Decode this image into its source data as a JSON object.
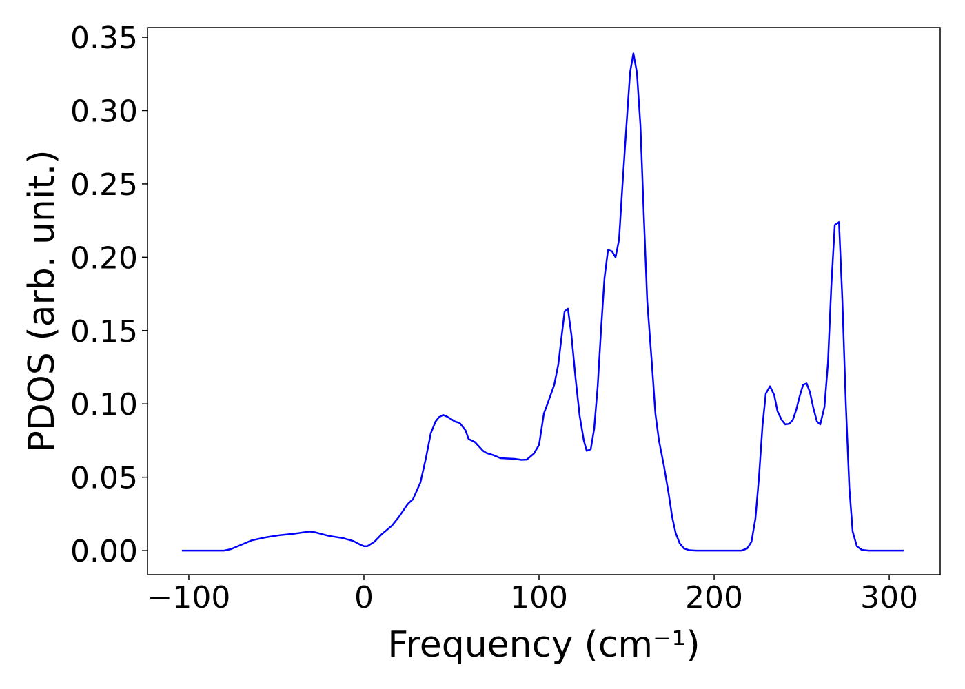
{
  "chart_data": {
    "type": "line",
    "x_label": "Frequency (cm⁻¹)",
    "y_label": "PDOS (arb. unit.)",
    "xlim": [
      -123.6,
      329.1
    ],
    "ylim": [
      -0.0164,
      0.3566
    ],
    "xticks": [
      {
        "value": -100,
        "label": "−100"
      },
      0,
      100,
      200,
      300
    ],
    "yticks": [
      {
        "value": 0,
        "label": "0.00"
      },
      {
        "value": 0.05,
        "label": "0.05"
      },
      {
        "value": 0.1,
        "label": "0.10"
      },
      {
        "value": 0.15,
        "label": "0.15"
      },
      {
        "value": 0.2,
        "label": "0.20"
      },
      {
        "value": 0.25,
        "label": "0.25"
      },
      {
        "value": 0.3,
        "label": "0.30"
      },
      {
        "value": 0.35,
        "label": "0.35"
      }
    ],
    "series": [
      {
        "color": "#0000ff",
        "x": [
          -104,
          -80,
          -76,
          -70,
          -64,
          -56,
          -48,
          -40,
          -31,
          -28,
          -20,
          -12,
          -6,
          -2,
          0,
          2,
          6,
          10,
          16,
          20,
          24,
          25.2,
          28,
          32.3,
          35.4,
          38.2,
          40.9,
          42.9,
          45.3,
          48,
          52,
          54.7,
          58,
          59.8,
          63.4,
          68,
          70,
          74,
          78,
          86,
          90,
          93,
          97,
          100,
          102.8,
          105.1,
          108.7,
          111,
          113,
          114.6,
          116.5,
          118.5,
          120.9,
          123.2,
          125.6,
          127.2,
          129.5,
          131.5,
          133.5,
          135.4,
          137.4,
          139.4,
          141.7,
          143.7,
          145.7,
          147.6,
          150,
          152,
          153.9,
          155.9,
          157.9,
          159.8,
          161.8,
          164.6,
          166.5,
          168.5,
          171.3,
          174,
          176,
          178,
          180.3,
          182.7,
          185.8,
          189.8,
          215.7,
          218.9,
          221.3,
          223.6,
          225.6,
          227.6,
          229.5,
          231.9,
          234.3,
          236.2,
          238.6,
          240.6,
          243,
          244.9,
          246.9,
          248.8,
          250.8,
          252.8,
          254.7,
          256.7,
          258.7,
          260.6,
          263,
          265,
          266.9,
          268.9,
          271.3,
          273.2,
          275.2,
          277.2,
          279.1,
          281.5,
          284.3,
          288.2,
          308.3
        ],
        "values": [
          0,
          0,
          0.001,
          0.004,
          0.007,
          0.009,
          0.0105,
          0.0115,
          0.013,
          0.0125,
          0.01,
          0.0085,
          0.0065,
          0.004,
          0.003,
          0.003,
          0.006,
          0.011,
          0.017,
          0.023,
          0.03,
          0.032,
          0.035,
          0.0465,
          0.063,
          0.08,
          0.088,
          0.091,
          0.0925,
          0.091,
          0.088,
          0.087,
          0.082,
          0.076,
          0.074,
          0.068,
          0.0665,
          0.065,
          0.063,
          0.0625,
          0.0618,
          0.062,
          0.066,
          0.072,
          0.0935,
          0.101,
          0.113,
          0.127,
          0.147,
          0.163,
          0.165,
          0.147,
          0.117,
          0.092,
          0.075,
          0.068,
          0.069,
          0.083,
          0.112,
          0.15,
          0.186,
          0.205,
          0.204,
          0.2,
          0.212,
          0.248,
          0.291,
          0.326,
          0.339,
          0.326,
          0.29,
          0.23,
          0.17,
          0.125,
          0.093,
          0.075,
          0.058,
          0.039,
          0.023,
          0.012,
          0.005,
          0.0015,
          0.0003,
          0,
          0,
          0.0015,
          0.006,
          0.022,
          0.05,
          0.085,
          0.107,
          0.112,
          0.106,
          0.095,
          0.089,
          0.086,
          0.0865,
          0.089,
          0.096,
          0.105,
          0.113,
          0.114,
          0.108,
          0.097,
          0.088,
          0.086,
          0.098,
          0.128,
          0.18,
          0.222,
          0.224,
          0.172,
          0.1,
          0.043,
          0.013,
          0.003,
          0.0005,
          0,
          0
        ]
      }
    ]
  }
}
